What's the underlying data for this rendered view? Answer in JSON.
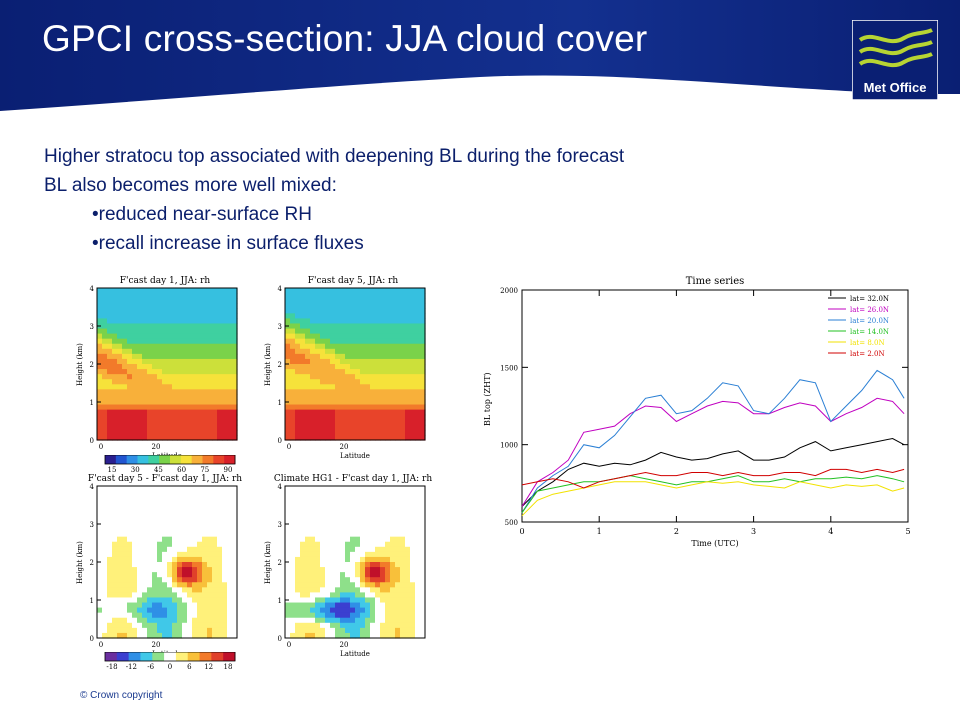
{
  "slide": {
    "title": "GPCI cross-section: JJA cloud cover",
    "logo_text": "Met Office",
    "bullets": [
      "Higher stratocu top associated with deepening BL during the forecast",
      "BL also becomes more well mixed:",
      "•reduced near-surface RH",
      "•recall increase in surface fluxes"
    ],
    "copyright": "© Crown copyright"
  },
  "colors": {
    "header_blue": "#0a1f73",
    "text_blue": "#0b1f6b",
    "logo_green": "#b7d433"
  },
  "panels": [
    {
      "title": "F'cast day 1, JJA: rh",
      "ylabel": "Height (km)",
      "xlabel": "Latitude",
      "yticks": [
        "0",
        "1",
        "2",
        "3",
        "4"
      ],
      "xticks": [
        "0",
        "20"
      ]
    },
    {
      "title": "F'cast day 5, JJA: rh",
      "ylabel": "Height (km)",
      "xlabel": "Latitude",
      "yticks": [
        "0",
        "1",
        "2",
        "3",
        "4"
      ],
      "xticks": [
        "0",
        "20"
      ]
    },
    {
      "title": "F'cast day 5 - F'cast day 1, JJA: rh",
      "ylabel": "Height (km)",
      "xlabel": "Latitude",
      "yticks": [
        "0",
        "1",
        "2",
        "3",
        "4"
      ],
      "xticks": [
        "0",
        "20"
      ]
    },
    {
      "title": "Climate HG1 - F'cast day 1, JJA: rh",
      "ylabel": "Height (km)",
      "xlabel": "Latitude",
      "yticks": [
        "0",
        "1",
        "2",
        "3",
        "4"
      ],
      "xticks": [
        "0",
        "20"
      ]
    }
  ],
  "colorbar_top": {
    "labels": [
      "15",
      "30",
      "45",
      "60",
      "75",
      "90"
    ]
  },
  "colorbar_bottom": {
    "labels": [
      "-18",
      "-12",
      "-6",
      "0",
      "6",
      "12",
      "18"
    ]
  },
  "chart_data": {
    "type": "line",
    "title": "Time series",
    "xlabel": "Time (UTC)",
    "ylabel": "BL top (ZHT)",
    "xlim": [
      0,
      5
    ],
    "ylim": [
      500,
      2000
    ],
    "xticks": [
      "0",
      "1",
      "2",
      "3",
      "4",
      "5"
    ],
    "yticks": [
      "500",
      "1000",
      "1500",
      "2000"
    ],
    "legend_position": "top-right",
    "x": [
      0.0,
      0.2,
      0.4,
      0.6,
      0.8,
      1.0,
      1.2,
      1.4,
      1.6,
      1.8,
      2.0,
      2.2,
      2.4,
      2.6,
      2.8,
      3.0,
      3.2,
      3.4,
      3.6,
      3.8,
      4.0,
      4.2,
      4.4,
      4.6,
      4.8,
      4.95
    ],
    "series": [
      {
        "name": "lat= 32.0N",
        "color": "#000000",
        "values": [
          600,
          700,
          760,
          840,
          880,
          860,
          880,
          870,
          900,
          950,
          920,
          900,
          910,
          940,
          960,
          900,
          900,
          920,
          980,
          1020,
          960,
          980,
          1000,
          1020,
          1040,
          1000
        ]
      },
      {
        "name": "lat= 26.0N",
        "color": "#c000c0",
        "values": [
          600,
          760,
          820,
          900,
          1080,
          1100,
          1120,
          1200,
          1250,
          1240,
          1150,
          1200,
          1250,
          1280,
          1270,
          1200,
          1200,
          1240,
          1270,
          1250,
          1150,
          1200,
          1240,
          1300,
          1280,
          1200
        ]
      },
      {
        "name": "lat= 20.0N",
        "color": "#2a7fd4",
        "values": [
          560,
          720,
          800,
          860,
          1000,
          980,
          1060,
          1180,
          1300,
          1320,
          1200,
          1220,
          1300,
          1400,
          1380,
          1220,
          1200,
          1300,
          1420,
          1400,
          1150,
          1250,
          1350,
          1480,
          1420,
          1300
        ]
      },
      {
        "name": "lat= 14.0N",
        "color": "#22c022",
        "values": [
          560,
          700,
          720,
          740,
          760,
          760,
          780,
          800,
          780,
          760,
          740,
          760,
          760,
          780,
          800,
          760,
          760,
          780,
          760,
          780,
          780,
          790,
          780,
          800,
          780,
          760
        ]
      },
      {
        "name": "lat=  8.0N",
        "color": "#f2e200",
        "values": [
          540,
          640,
          680,
          700,
          720,
          740,
          760,
          760,
          760,
          740,
          720,
          740,
          760,
          750,
          760,
          740,
          730,
          720,
          760,
          740,
          720,
          740,
          730,
          740,
          700,
          720
        ]
      },
      {
        "name": "lat=  2.0N",
        "color": "#d00000",
        "values": [
          740,
          760,
          780,
          760,
          720,
          760,
          780,
          800,
          820,
          800,
          800,
          820,
          820,
          800,
          820,
          800,
          800,
          820,
          820,
          800,
          840,
          840,
          820,
          840,
          820,
          840
        ]
      }
    ]
  }
}
